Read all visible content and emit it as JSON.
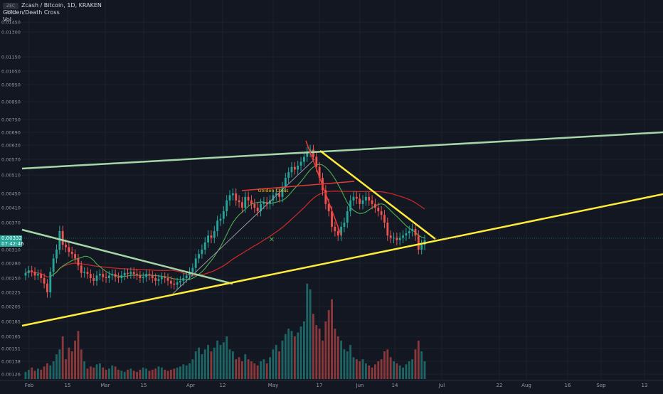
{
  "header": {
    "symbol_badge": "ZEC BTC",
    "title": "Zcash / Bitcoin, 1D, KRAKEN",
    "indicators": [
      "Golden/Death Cross",
      "Vol"
    ]
  },
  "price_badge": {
    "price": "0.00332",
    "countdown": "07:42:46",
    "color": "#26a69a"
  },
  "chart_data": {
    "type": "candlestick",
    "title": "Zcash / Bitcoin, 1D, KRAKEN",
    "y_ticks": [
      "0.01450",
      "0.01300",
      "0.01150",
      "0.01050",
      "0.00950",
      "0.00850",
      "0.00750",
      "0.00690",
      "0.00630",
      "0.00570",
      "0.00510",
      "0.00450",
      "0.00410",
      "0.00370",
      "0.00310",
      "0.00280",
      "0.00250",
      "0.00225",
      "0.00205",
      "0.00185",
      "0.00165",
      "0.00151",
      "0.00138",
      "0.00126"
    ],
    "x_ticks": [
      "Feb",
      "15",
      "Mar",
      "15",
      "Apr",
      "12",
      "May",
      "17",
      "Jun",
      "14",
      "Jul",
      "22",
      "Aug",
      "16",
      "Sep",
      "13"
    ],
    "annotations": [
      "Golden Cross"
    ],
    "colors": {
      "up": "#26a69a",
      "down": "#ef5350",
      "trendline_green": "#a5d6a7",
      "trendline_yellow": "#ffeb3b",
      "ma_fast": "#4caf50",
      "ma_slow": "#c62828"
    },
    "x_range": [
      0,
      188
    ],
    "y_range": [
      0.00126,
      0.0145
    ],
    "scale": "log",
    "close": [
      0.0026,
      0.00265,
      0.00262,
      0.00255,
      0.00258,
      0.0025,
      0.0024,
      0.00225,
      0.00262,
      0.0029,
      0.0031,
      0.0035,
      0.0032,
      0.00315,
      0.00305,
      0.003,
      0.0029,
      0.00275,
      0.0026,
      0.00262,
      0.00258,
      0.0025,
      0.00245,
      0.00255,
      0.00258,
      0.00252,
      0.0025,
      0.00255,
      0.00258,
      0.00252,
      0.0025,
      0.00255,
      0.0026,
      0.00258,
      0.00262,
      0.00258,
      0.00255,
      0.0025,
      0.00252,
      0.00258,
      0.00255,
      0.0025,
      0.00245,
      0.00248,
      0.00252,
      0.0025,
      0.00245,
      0.0024,
      0.00238,
      0.00242,
      0.00245,
      0.0025,
      0.00255,
      0.00262,
      0.0027,
      0.0029,
      0.003,
      0.0031,
      0.00325,
      0.0034,
      0.00335,
      0.0035,
      0.00375,
      0.0038,
      0.004,
      0.0043,
      0.00445,
      0.0045,
      0.0043,
      0.00425,
      0.0041,
      0.0044,
      0.0043,
      0.0042,
      0.0041,
      0.004,
      0.0042,
      0.00425,
      0.0042,
      0.0043,
      0.00445,
      0.0045,
      0.0044,
      0.0047,
      0.005,
      0.0052,
      0.0054,
      0.0053,
      0.00545,
      0.0056,
      0.0058,
      0.006,
      0.0061,
      0.0058,
      0.0054,
      0.005,
      0.0046,
      0.0042,
      0.004,
      0.0036,
      0.0035,
      0.0034,
      0.0036,
      0.0037,
      0.004,
      0.0043,
      0.0044,
      0.00435,
      0.0042,
      0.0043,
      0.0044,
      0.0043,
      0.0042,
      0.0041,
      0.004,
      0.0039,
      0.0037,
      0.0034,
      0.00335,
      0.00335,
      0.0033,
      0.00335,
      0.0034,
      0.00345,
      0.0035,
      0.00355,
      0.0034,
      0.0031,
      0.0032,
      0.0033
    ],
    "volume": [
      0.00128,
      0.0013,
      0.00132,
      0.00129,
      0.00131,
      0.0013,
      0.00133,
      0.00136,
      0.00134,
      0.00138,
      0.00145,
      0.0015,
      0.00165,
      0.0014,
      0.00152,
      0.00148,
      0.0016,
      0.00172,
      0.0015,
      0.00138,
      0.00131,
      0.00133,
      0.00132,
      0.00135,
      0.00136,
      0.00132,
      0.0013,
      0.00131,
      0.00134,
      0.00133,
      0.0013,
      0.00129,
      0.00128,
      0.0013,
      0.00131,
      0.00129,
      0.00128,
      0.0013,
      0.00132,
      0.00131,
      0.00129,
      0.0013,
      0.00131,
      0.00133,
      0.00132,
      0.0013,
      0.00129,
      0.0013,
      0.00131,
      0.00132,
      0.00133,
      0.00135,
      0.00134,
      0.00136,
      0.0014,
      0.00148,
      0.00152,
      0.00145,
      0.0015,
      0.00155,
      0.00148,
      0.00152,
      0.0016,
      0.00155,
      0.00158,
      0.00165,
      0.0015,
      0.00148,
      0.0014,
      0.00142,
      0.00138,
      0.00145,
      0.0014,
      0.00138,
      0.00136,
      0.00134,
      0.00138,
      0.0014,
      0.00136,
      0.00142,
      0.0015,
      0.00155,
      0.00148,
      0.0016,
      0.00168,
      0.00175,
      0.00172,
      0.00165,
      0.0017,
      0.00178,
      0.00185,
      0.0024,
      0.0023,
      0.00195,
      0.0018,
      0.00175,
      0.0016,
      0.00185,
      0.002,
      0.00215,
      0.00175,
      0.00165,
      0.0016,
      0.0015,
      0.00148,
      0.00155,
      0.00142,
      0.0014,
      0.00138,
      0.0014,
      0.00136,
      0.00134,
      0.00132,
      0.00135,
      0.00138,
      0.0014,
      0.00148,
      0.0015,
      0.00142,
      0.00138,
      0.00136,
      0.00134,
      0.00132,
      0.00135,
      0.00138,
      0.0014,
      0.0015,
      0.0016,
      0.00148,
      0.00138
    ]
  }
}
